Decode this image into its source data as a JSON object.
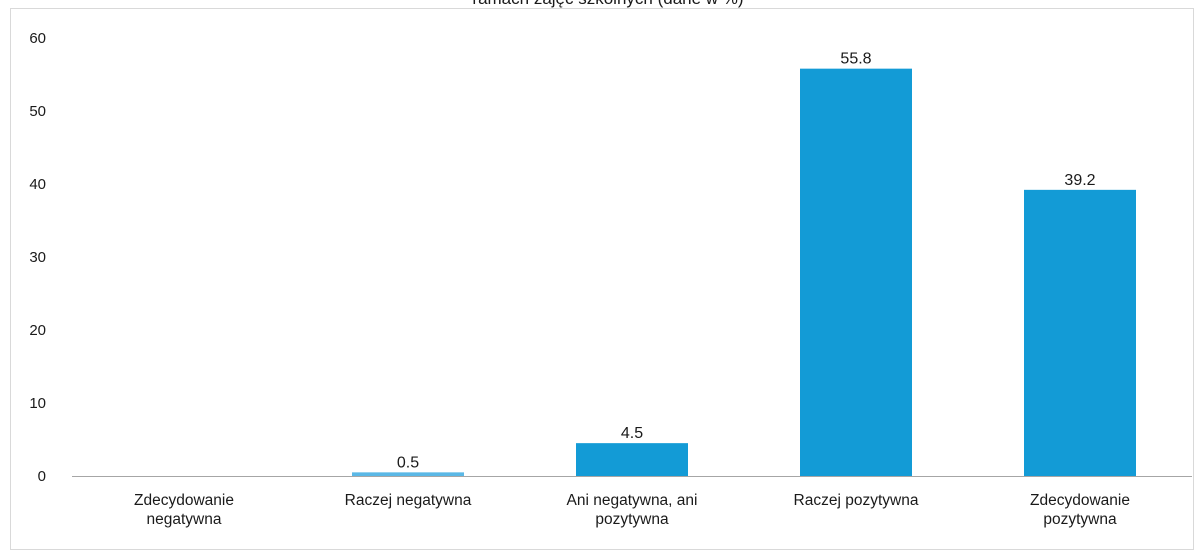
{
  "chart_data": {
    "type": "bar",
    "title": "ramach zajęć szkolnych (dane w %)",
    "categories": [
      [
        "Zdecydowanie",
        "negatywna"
      ],
      [
        "Raczej negatywna"
      ],
      [
        "Ani negatywna, ani",
        "pozytywna"
      ],
      [
        "Raczej pozytywna"
      ],
      [
        "Zdecydowanie",
        "pozytywna"
      ]
    ],
    "values": [
      0,
      0.5,
      4.5,
      55.8,
      39.2
    ],
    "value_labels": [
      "",
      "0.5",
      "4.5",
      "55.8",
      "39.2"
    ],
    "y_ticks": [
      "0",
      "10",
      "20",
      "30",
      "40",
      "50",
      "60"
    ],
    "ylim": [
      0,
      60
    ],
    "xlabel": "",
    "ylabel": "",
    "grid": false,
    "legend": "none",
    "colors": {
      "bar": "#139bd6",
      "bar_small": "#5bb8e6",
      "axis": "#a6a6a6",
      "frame": "#d9d9d9"
    }
  }
}
